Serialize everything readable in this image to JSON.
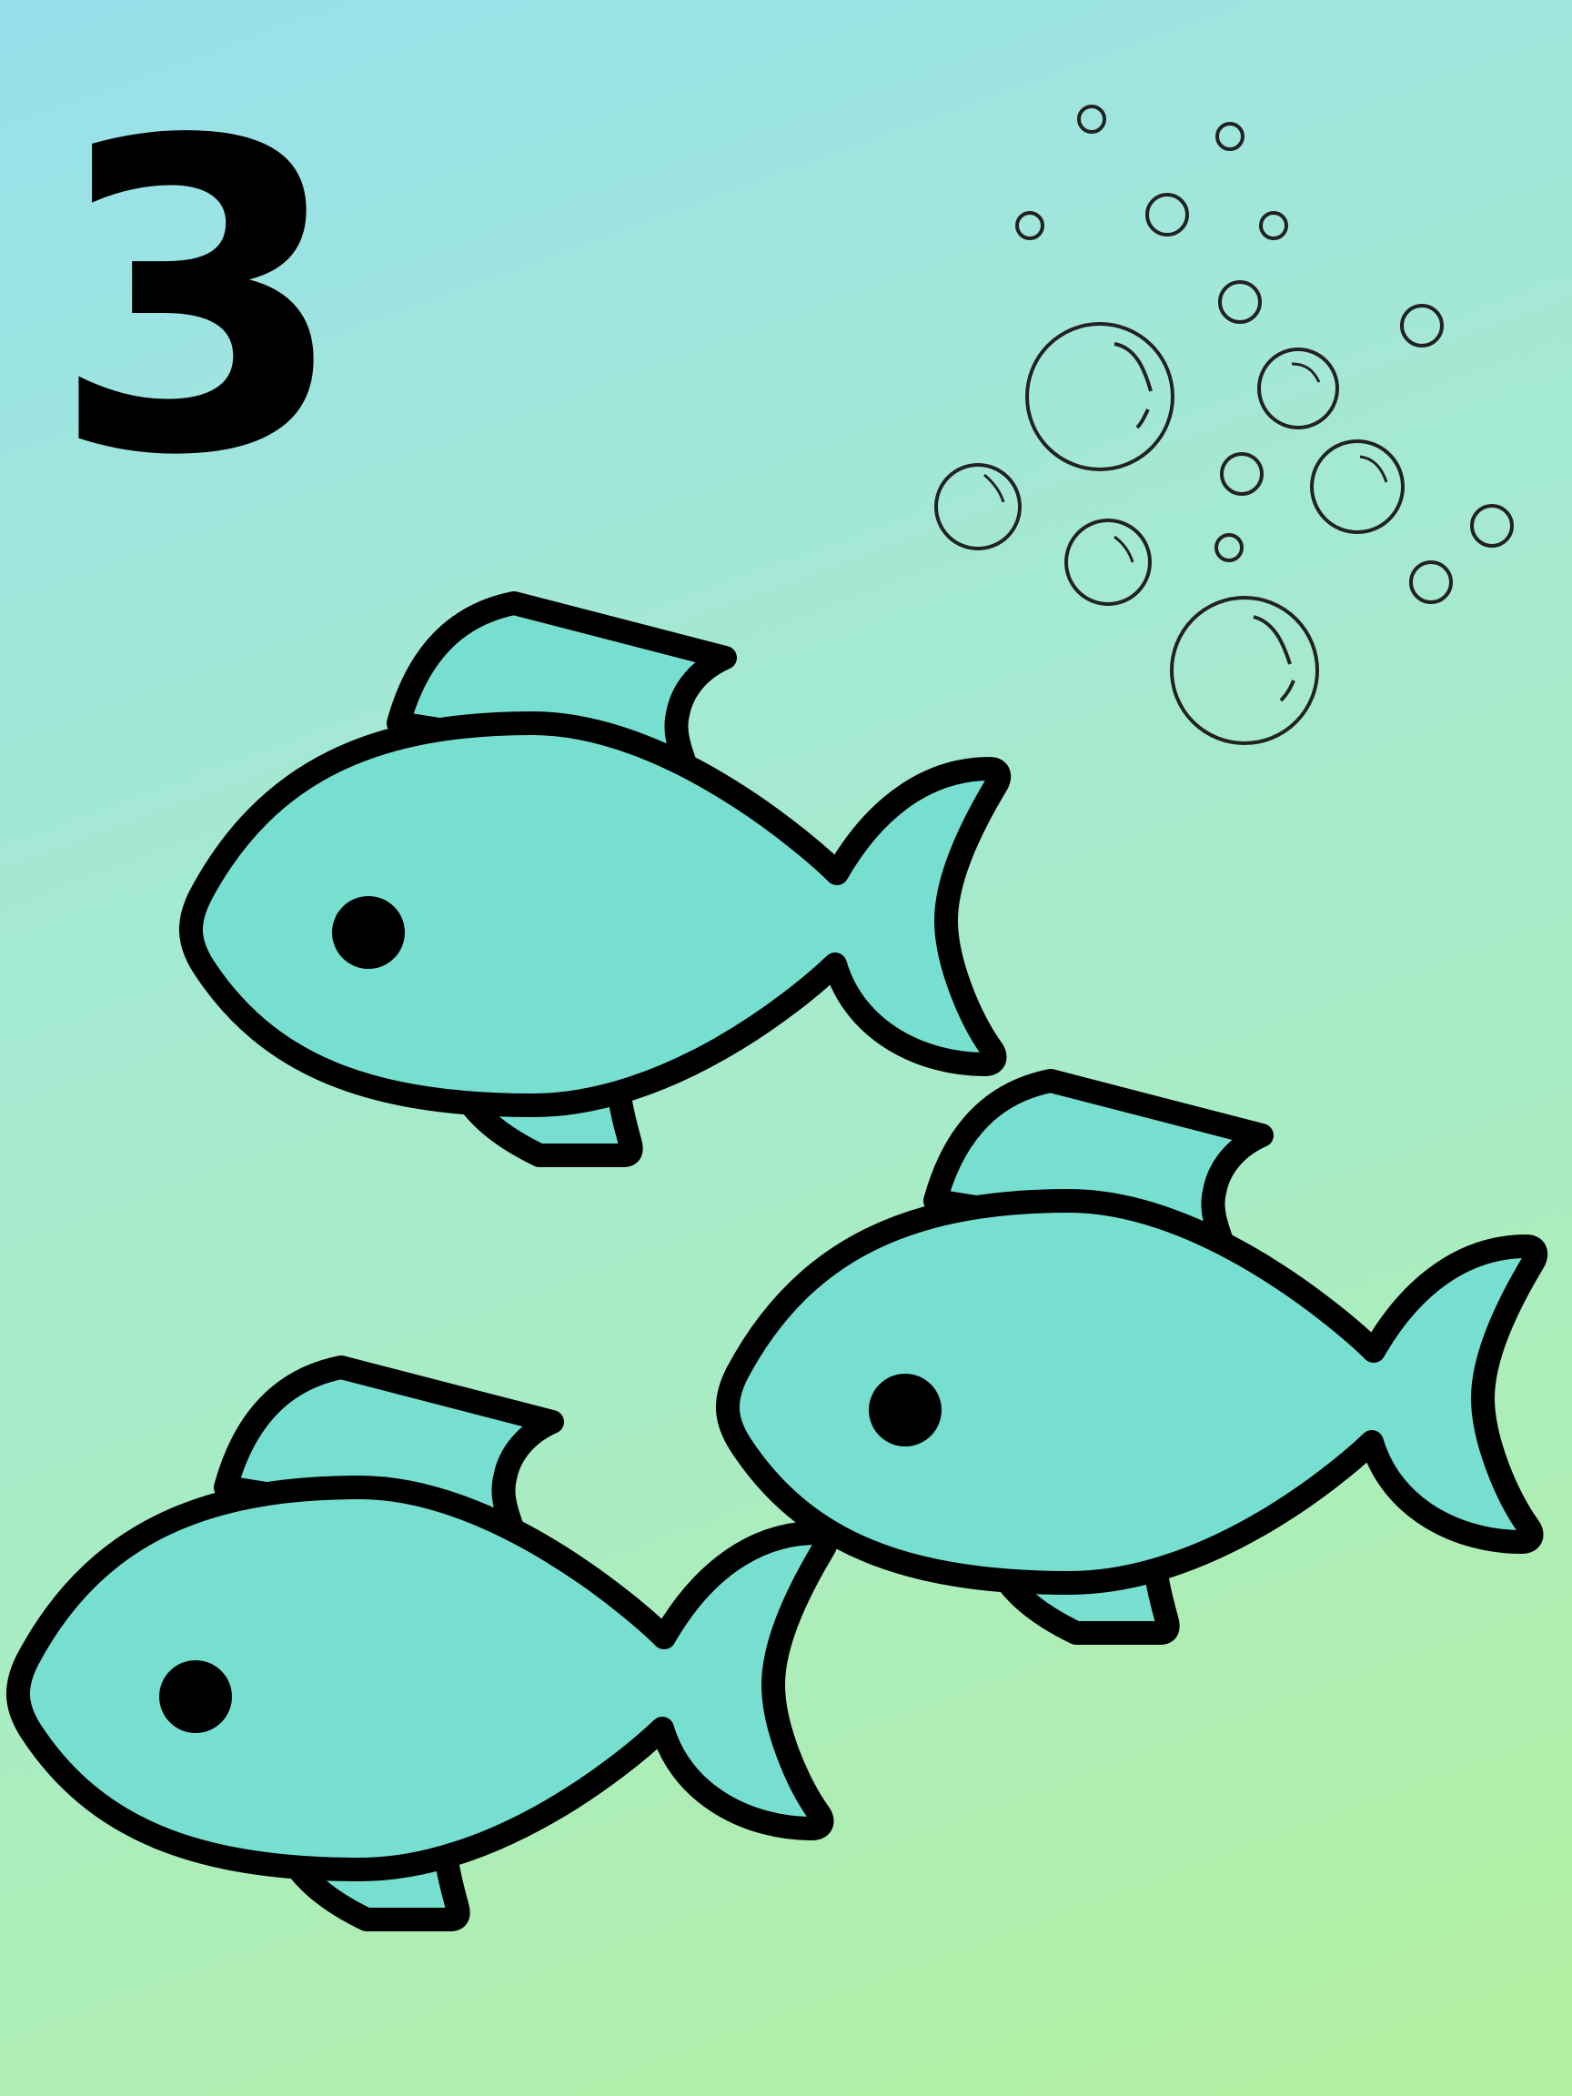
{
  "card": {
    "numeral": "3",
    "background_gradient": [
      "#96e0ec",
      "#a8ecc5",
      "#b5f0a0"
    ],
    "fish_fill": "#76dfd0",
    "outline_color": "#000000",
    "fish_count": 3,
    "icons": {
      "fish": "fish-icon",
      "bubbles": "bubbles-icon"
    }
  }
}
